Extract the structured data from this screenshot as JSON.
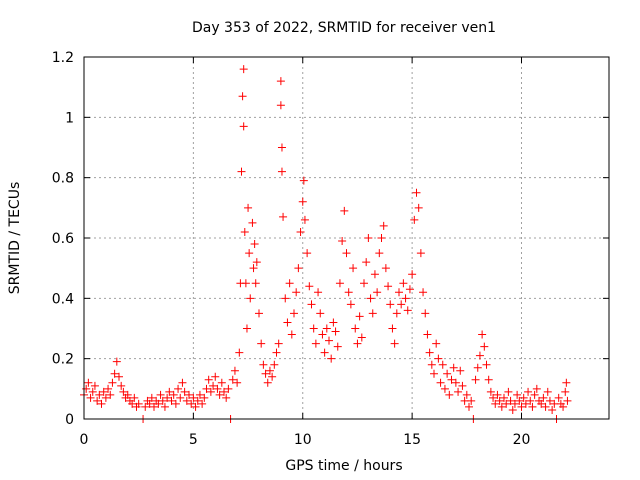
{
  "chart_data": {
    "type": "scatter",
    "title": "Day 353 of 2022, SRMTID for receiver ven1",
    "xlabel": "GPS time / hours",
    "ylabel": "SRMTID / TECUs",
    "xlim": [
      0,
      24
    ],
    "ylim": [
      0,
      1.2
    ],
    "xticks": [
      0,
      5,
      10,
      15,
      20
    ],
    "yticks": [
      0,
      0.2,
      0.4,
      0.6,
      0.8,
      1,
      1.2
    ],
    "xtick_labels": [
      "0",
      "5",
      "10",
      "15",
      "20"
    ],
    "ytick_labels": [
      "0",
      "0.2",
      "0.4",
      "0.6",
      "0.8",
      "1",
      "1.2"
    ],
    "grid": true,
    "marker": "plus",
    "marker_color": "#ff0000",
    "series": [
      {
        "name": "SRMTID",
        "points": [
          [
            0.0,
            0.08
          ],
          [
            0.1,
            0.1
          ],
          [
            0.2,
            0.12
          ],
          [
            0.3,
            0.07
          ],
          [
            0.4,
            0.09
          ],
          [
            0.5,
            0.11
          ],
          [
            0.6,
            0.06
          ],
          [
            0.7,
            0.08
          ],
          [
            0.8,
            0.05
          ],
          [
            0.9,
            0.09
          ],
          [
            1.0,
            0.07
          ],
          [
            1.1,
            0.1
          ],
          [
            1.2,
            0.08
          ],
          [
            1.3,
            0.12
          ],
          [
            1.4,
            0.15
          ],
          [
            1.5,
            0.19
          ],
          [
            1.6,
            0.14
          ],
          [
            1.7,
            0.11
          ],
          [
            1.8,
            0.09
          ],
          [
            1.9,
            0.07
          ],
          [
            2.0,
            0.08
          ],
          [
            2.1,
            0.06
          ],
          [
            2.2,
            0.05
          ],
          [
            2.3,
            0.07
          ],
          [
            2.4,
            0.04
          ],
          [
            2.5,
            0.05
          ],
          [
            2.7,
            0.0
          ],
          [
            2.8,
            0.04
          ],
          [
            2.9,
            0.06
          ],
          [
            3.0,
            0.05
          ],
          [
            3.1,
            0.07
          ],
          [
            3.2,
            0.04
          ],
          [
            3.3,
            0.06
          ],
          [
            3.4,
            0.05
          ],
          [
            3.5,
            0.08
          ],
          [
            3.6,
            0.06
          ],
          [
            3.7,
            0.04
          ],
          [
            3.8,
            0.07
          ],
          [
            3.9,
            0.09
          ],
          [
            4.0,
            0.06
          ],
          [
            4.1,
            0.08
          ],
          [
            4.2,
            0.05
          ],
          [
            4.3,
            0.1
          ],
          [
            4.4,
            0.07
          ],
          [
            4.5,
            0.12
          ],
          [
            4.6,
            0.09
          ],
          [
            4.7,
            0.06
          ],
          [
            4.8,
            0.08
          ],
          [
            4.9,
            0.05
          ],
          [
            5.0,
            0.07
          ],
          [
            5.1,
            0.04
          ],
          [
            5.2,
            0.06
          ],
          [
            5.3,
            0.08
          ],
          [
            5.4,
            0.05
          ],
          [
            5.5,
            0.07
          ],
          [
            5.6,
            0.1
          ],
          [
            5.7,
            0.13
          ],
          [
            5.8,
            0.09
          ],
          [
            5.9,
            0.11
          ],
          [
            6.0,
            0.14
          ],
          [
            6.1,
            0.1
          ],
          [
            6.2,
            0.08
          ],
          [
            6.3,
            0.12
          ],
          [
            6.4,
            0.09
          ],
          [
            6.5,
            0.07
          ],
          [
            6.6,
            0.1
          ],
          [
            6.7,
            0.0
          ],
          [
            6.8,
            0.13
          ],
          [
            6.9,
            0.16
          ],
          [
            7.0,
            0.12
          ],
          [
            7.1,
            0.22
          ],
          [
            7.15,
            0.45
          ],
          [
            7.2,
            0.82
          ],
          [
            7.25,
            1.07
          ],
          [
            7.3,
            1.16
          ],
          [
            7.3,
            0.97
          ],
          [
            7.35,
            0.62
          ],
          [
            7.4,
            0.45
          ],
          [
            7.45,
            0.3
          ],
          [
            7.5,
            0.7
          ],
          [
            7.55,
            0.55
          ],
          [
            7.6,
            0.4
          ],
          [
            7.7,
            0.65
          ],
          [
            7.75,
            0.5
          ],
          [
            7.8,
            0.58
          ],
          [
            7.85,
            0.45
          ],
          [
            7.9,
            0.52
          ],
          [
            8.0,
            0.35
          ],
          [
            8.1,
            0.25
          ],
          [
            8.2,
            0.18
          ],
          [
            8.3,
            0.15
          ],
          [
            8.4,
            0.12
          ],
          [
            8.5,
            0.16
          ],
          [
            8.6,
            0.14
          ],
          [
            8.7,
            0.18
          ],
          [
            8.8,
            0.22
          ],
          [
            8.9,
            0.25
          ],
          [
            9.0,
            1.12
          ],
          [
            9.0,
            1.04
          ],
          [
            9.05,
            0.9
          ],
          [
            9.05,
            0.82
          ],
          [
            9.1,
            0.67
          ],
          [
            9.2,
            0.4
          ],
          [
            9.3,
            0.32
          ],
          [
            9.4,
            0.45
          ],
          [
            9.5,
            0.28
          ],
          [
            9.6,
            0.35
          ],
          [
            9.7,
            0.42
          ],
          [
            9.8,
            0.5
          ],
          [
            9.9,
            0.62
          ],
          [
            10.0,
            0.72
          ],
          [
            10.05,
            0.79
          ],
          [
            10.1,
            0.66
          ],
          [
            10.2,
            0.55
          ],
          [
            10.3,
            0.44
          ],
          [
            10.4,
            0.38
          ],
          [
            10.5,
            0.3
          ],
          [
            10.6,
            0.25
          ],
          [
            10.7,
            0.42
          ],
          [
            10.8,
            0.35
          ],
          [
            10.9,
            0.28
          ],
          [
            11.0,
            0.22
          ],
          [
            11.1,
            0.3
          ],
          [
            11.2,
            0.26
          ],
          [
            11.3,
            0.2
          ],
          [
            11.4,
            0.32
          ],
          [
            11.5,
            0.29
          ],
          [
            11.6,
            0.24
          ],
          [
            11.7,
            0.45
          ],
          [
            11.8,
            0.59
          ],
          [
            11.9,
            0.69
          ],
          [
            12.0,
            0.55
          ],
          [
            12.1,
            0.42
          ],
          [
            12.2,
            0.38
          ],
          [
            12.3,
            0.5
          ],
          [
            12.4,
            0.3
          ],
          [
            12.5,
            0.25
          ],
          [
            12.6,
            0.34
          ],
          [
            12.7,
            0.27
          ],
          [
            12.8,
            0.45
          ],
          [
            12.9,
            0.52
          ],
          [
            13.0,
            0.6
          ],
          [
            13.1,
            0.4
          ],
          [
            13.2,
            0.35
          ],
          [
            13.3,
            0.48
          ],
          [
            13.4,
            0.42
          ],
          [
            13.5,
            0.55
          ],
          [
            13.6,
            0.6
          ],
          [
            13.7,
            0.64
          ],
          [
            13.8,
            0.5
          ],
          [
            13.9,
            0.44
          ],
          [
            14.0,
            0.38
          ],
          [
            14.1,
            0.3
          ],
          [
            14.2,
            0.25
          ],
          [
            14.3,
            0.35
          ],
          [
            14.4,
            0.42
          ],
          [
            14.5,
            0.38
          ],
          [
            14.6,
            0.45
          ],
          [
            14.7,
            0.4
          ],
          [
            14.8,
            0.36
          ],
          [
            14.9,
            0.43
          ],
          [
            15.0,
            0.48
          ],
          [
            15.1,
            0.66
          ],
          [
            15.2,
            0.75
          ],
          [
            15.3,
            0.7
          ],
          [
            15.4,
            0.55
          ],
          [
            15.5,
            0.42
          ],
          [
            15.6,
            0.35
          ],
          [
            15.7,
            0.28
          ],
          [
            15.8,
            0.22
          ],
          [
            15.9,
            0.18
          ],
          [
            16.0,
            0.15
          ],
          [
            16.1,
            0.25
          ],
          [
            16.2,
            0.2
          ],
          [
            16.3,
            0.12
          ],
          [
            16.4,
            0.18
          ],
          [
            16.5,
            0.1
          ],
          [
            16.6,
            0.15
          ],
          [
            16.7,
            0.08
          ],
          [
            16.8,
            0.13
          ],
          [
            16.9,
            0.17
          ],
          [
            17.0,
            0.12
          ],
          [
            17.1,
            0.09
          ],
          [
            17.2,
            0.16
          ],
          [
            17.3,
            0.11
          ],
          [
            17.4,
            0.06
          ],
          [
            17.5,
            0.08
          ],
          [
            17.6,
            0.04
          ],
          [
            17.7,
            0.06
          ],
          [
            17.8,
            0.0
          ],
          [
            17.9,
            0.13
          ],
          [
            18.0,
            0.17
          ],
          [
            18.1,
            0.21
          ],
          [
            18.2,
            0.28
          ],
          [
            18.3,
            0.24
          ],
          [
            18.4,
            0.18
          ],
          [
            18.5,
            0.13
          ],
          [
            18.6,
            0.09
          ],
          [
            18.7,
            0.07
          ],
          [
            18.8,
            0.05
          ],
          [
            18.9,
            0.08
          ],
          [
            19.0,
            0.06
          ],
          [
            19.1,
            0.04
          ],
          [
            19.2,
            0.07
          ],
          [
            19.3,
            0.05
          ],
          [
            19.4,
            0.09
          ],
          [
            19.5,
            0.06
          ],
          [
            19.6,
            0.03
          ],
          [
            19.7,
            0.05
          ],
          [
            19.8,
            0.08
          ],
          [
            19.9,
            0.06
          ],
          [
            20.0,
            0.04
          ],
          [
            20.1,
            0.07
          ],
          [
            20.2,
            0.05
          ],
          [
            20.3,
            0.09
          ],
          [
            20.4,
            0.06
          ],
          [
            20.5,
            0.04
          ],
          [
            20.6,
            0.08
          ],
          [
            20.7,
            0.1
          ],
          [
            20.8,
            0.06
          ],
          [
            20.9,
            0.05
          ],
          [
            21.0,
            0.07
          ],
          [
            21.1,
            0.04
          ],
          [
            21.2,
            0.09
          ],
          [
            21.3,
            0.06
          ],
          [
            21.4,
            0.03
          ],
          [
            21.5,
            0.05
          ],
          [
            21.6,
            0.0
          ],
          [
            21.7,
            0.07
          ],
          [
            21.8,
            0.05
          ],
          [
            21.9,
            0.04
          ],
          [
            22.0,
            0.09
          ],
          [
            22.05,
            0.12
          ],
          [
            22.1,
            0.06
          ]
        ]
      }
    ]
  }
}
